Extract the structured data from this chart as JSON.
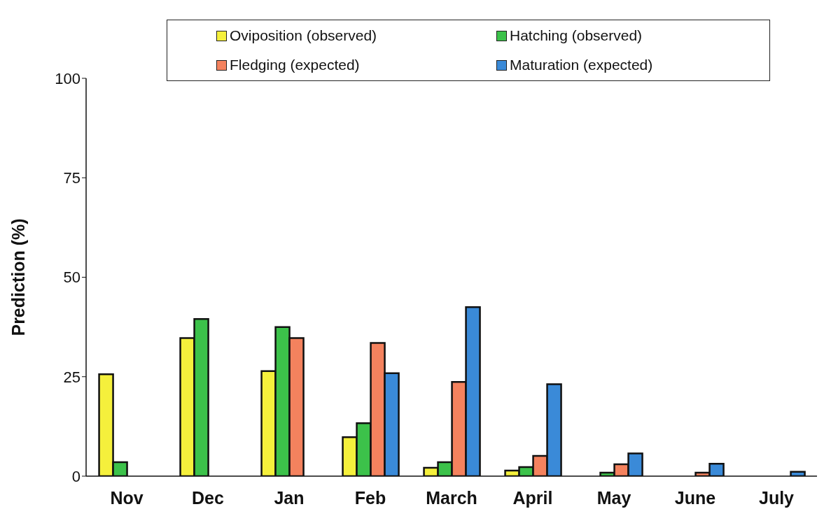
{
  "chart_data": {
    "type": "bar",
    "ylabel": "Prediction (%)",
    "categories": [
      "Nov",
      "Dec",
      "Jan",
      "Feb",
      "March",
      "April",
      "May",
      "June",
      "July"
    ],
    "series": [
      {
        "name": "Oviposition (observed)",
        "color": "#f5f03c",
        "values": [
          25.6,
          34.7,
          26.4,
          9.8,
          2.1,
          1.4,
          null,
          null,
          null
        ]
      },
      {
        "name": "Hatching (observed)",
        "color": "#3cc24a",
        "values": [
          3.5,
          39.5,
          37.5,
          13.3,
          3.5,
          2.3,
          0.9,
          null,
          null
        ]
      },
      {
        "name": "Fledging (expected)",
        "color": "#f4825e",
        "values": [
          null,
          null,
          34.7,
          33.5,
          23.7,
          5.1,
          3.0,
          0.9,
          null
        ]
      },
      {
        "name": "Maturation (expected)",
        "color": "#3a8ad8",
        "values": [
          null,
          null,
          null,
          25.9,
          42.5,
          23.1,
          5.7,
          3.1,
          1.1
        ]
      }
    ],
    "ylim": [
      0,
      100
    ],
    "yticks": [
      0,
      25,
      50,
      75,
      100
    ],
    "grid": false,
    "legend": "top"
  }
}
